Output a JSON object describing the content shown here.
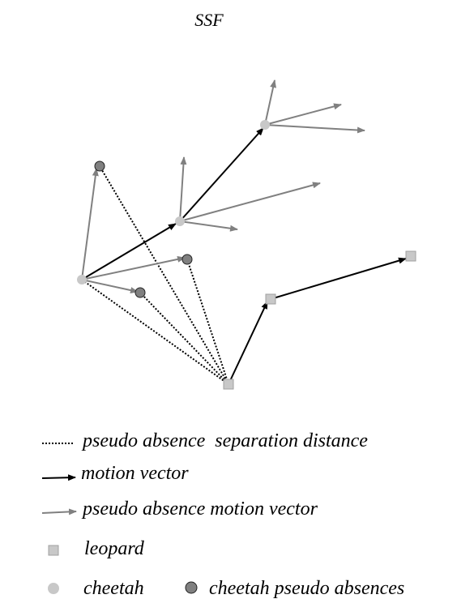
{
  "title": "SSF",
  "colors": {
    "motion_vector": "#000000",
    "pseudo_vector": "#808080",
    "separation": "#000000",
    "leopard_fill": "#c8c8c8",
    "cheetah_fill": "#c8c8c8",
    "pseudo_absence_fill": "#808080"
  },
  "legend": {
    "separation": "pseudo absence  separation distance",
    "motion": "motion vector",
    "pseudo_motion": "pseudo absence motion vector",
    "leopard": "leopard",
    "cheetah": "cheetah",
    "cheetah_pseudo": "cheetah pseudo absences"
  }
}
